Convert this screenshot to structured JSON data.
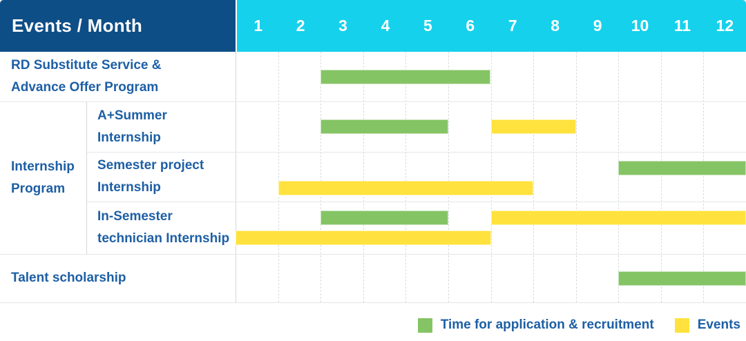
{
  "colors": {
    "navy": "#0e4e86",
    "cyan": "#15d1eb",
    "green": "#85c465",
    "yellow": "#ffe23d",
    "text_blue": "#1d5fa5"
  },
  "chart_data": {
    "type": "gantt",
    "corner_label": "Events / Month",
    "months": [
      1,
      2,
      3,
      4,
      5,
      6,
      7,
      8,
      9,
      10,
      11,
      12
    ],
    "x_unit": "month",
    "legend": [
      {
        "label": "Time for application & recruitment",
        "color": "green"
      },
      {
        "label": "Events",
        "color": "yellow"
      }
    ],
    "sections": [
      {
        "label": "Internship Program",
        "label_lines": [
          "Internship",
          "Program"
        ],
        "row_indexes": [
          1,
          2,
          3
        ]
      }
    ],
    "rows": [
      {
        "label": "RD Substitute Service & Advance Offer Program",
        "label_lines": [
          "RD Substitute Service &",
          "Advance Offer Program"
        ],
        "lines": [
          [
            {
              "color": "green",
              "start": 3,
              "end": 6
            }
          ]
        ]
      },
      {
        "label": "A+Summer Internship",
        "label_lines": [
          "A+Summer",
          "Internship"
        ],
        "lines": [
          [
            {
              "color": "green",
              "start": 3,
              "end": 5
            },
            {
              "color": "yellow",
              "start": 7,
              "end": 8
            }
          ]
        ]
      },
      {
        "label": "Semester project Internship",
        "label_lines": [
          "Semester project",
          "Internship"
        ],
        "lines": [
          [
            {
              "color": "green",
              "start": 10,
              "end": 12
            }
          ],
          [
            {
              "color": "yellow",
              "start": 2,
              "end": 7
            }
          ]
        ]
      },
      {
        "label": "In-Semester technician Internship",
        "label_lines": [
          "In-Semester",
          "technician Internship"
        ],
        "lines": [
          [
            {
              "color": "green",
              "start": 3,
              "end": 5
            },
            {
              "color": "yellow",
              "start": 7,
              "end": 12
            }
          ],
          [
            {
              "color": "yellow",
              "start": 1,
              "end": 6
            }
          ]
        ]
      },
      {
        "label": "Talent scholarship",
        "label_lines": [
          "Talent scholarship"
        ],
        "lines": [
          [
            {
              "color": "green",
              "start": 10,
              "end": 12
            }
          ]
        ]
      }
    ]
  }
}
